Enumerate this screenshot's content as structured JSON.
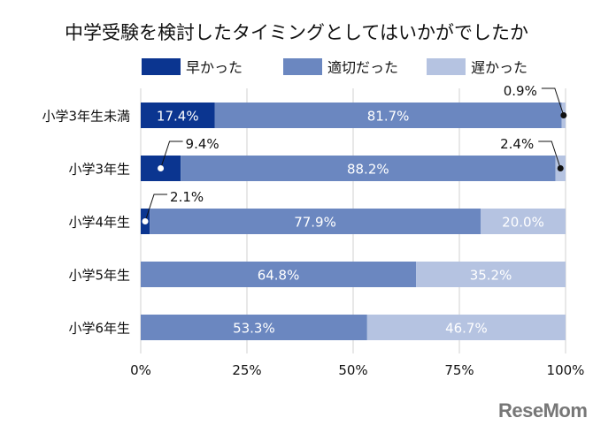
{
  "chart_data": {
    "type": "bar",
    "orientation": "horizontal",
    "stacked": true,
    "title": "中学受験を検討したタイミングとしてはいかがでしたか",
    "categories": [
      "小学3年生未満",
      "小学3年生",
      "小学4年生",
      "小学5年生",
      "小学6年生"
    ],
    "series": [
      {
        "name": "早かった",
        "color": "#0b3590",
        "values": [
          17.4,
          9.4,
          2.1,
          0,
          0
        ]
      },
      {
        "name": "適切だった",
        "color": "#6b87c0",
        "values": [
          81.7,
          88.2,
          77.9,
          64.8,
          53.3
        ]
      },
      {
        "name": "遅かった",
        "color": "#b5c3e1",
        "values": [
          0.9,
          2.4,
          20.0,
          35.2,
          46.7
        ]
      }
    ],
    "xlim": [
      0,
      100
    ],
    "xticks": [
      "0%",
      "25%",
      "50%",
      "75%",
      "100%"
    ],
    "grid": true,
    "legend": "top"
  },
  "logo": "ReseMom"
}
